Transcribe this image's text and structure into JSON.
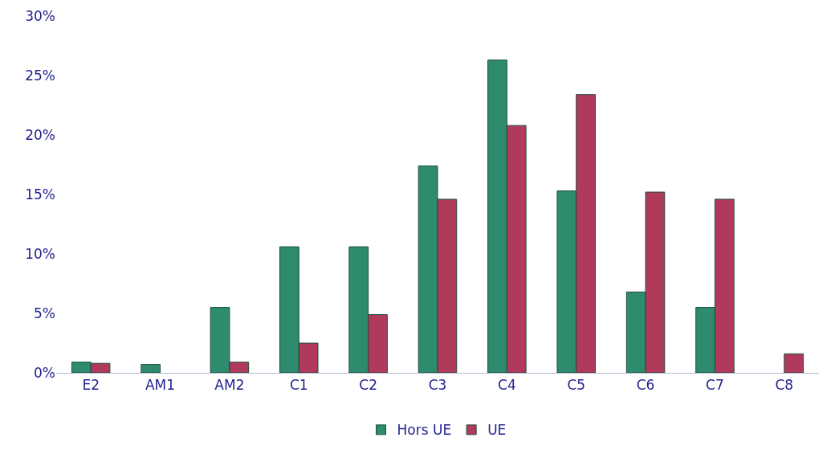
{
  "chart_data": {
    "type": "bar",
    "categories": [
      "E2",
      "AM1",
      "AM2",
      "C1",
      "C2",
      "C3",
      "C4",
      "C5",
      "C6",
      "C7",
      "C8"
    ],
    "series": [
      {
        "name": "Hors UE",
        "color": "#2e8b6e",
        "values": [
          0.9,
          0.7,
          5.5,
          10.6,
          10.6,
          17.4,
          26.3,
          15.3,
          6.8,
          5.5,
          null
        ]
      },
      {
        "name": "UE",
        "color": "#b03a5b",
        "values": [
          0.8,
          null,
          0.9,
          2.5,
          4.9,
          14.6,
          20.8,
          23.4,
          15.2,
          14.6,
          1.6
        ]
      }
    ],
    "ylim": [
      0,
      30
    ],
    "yticks": [
      {
        "value": 0,
        "label": "0%"
      },
      {
        "value": 5,
        "label": "5%"
      },
      {
        "value": 10,
        "label": "10%"
      },
      {
        "value": 15,
        "label": "15%"
      },
      {
        "value": 20,
        "label": "20%"
      },
      {
        "value": 25,
        "label": "25%"
      },
      {
        "value": 30,
        "label": "30%"
      }
    ],
    "grid": false,
    "legend": "bottom"
  }
}
